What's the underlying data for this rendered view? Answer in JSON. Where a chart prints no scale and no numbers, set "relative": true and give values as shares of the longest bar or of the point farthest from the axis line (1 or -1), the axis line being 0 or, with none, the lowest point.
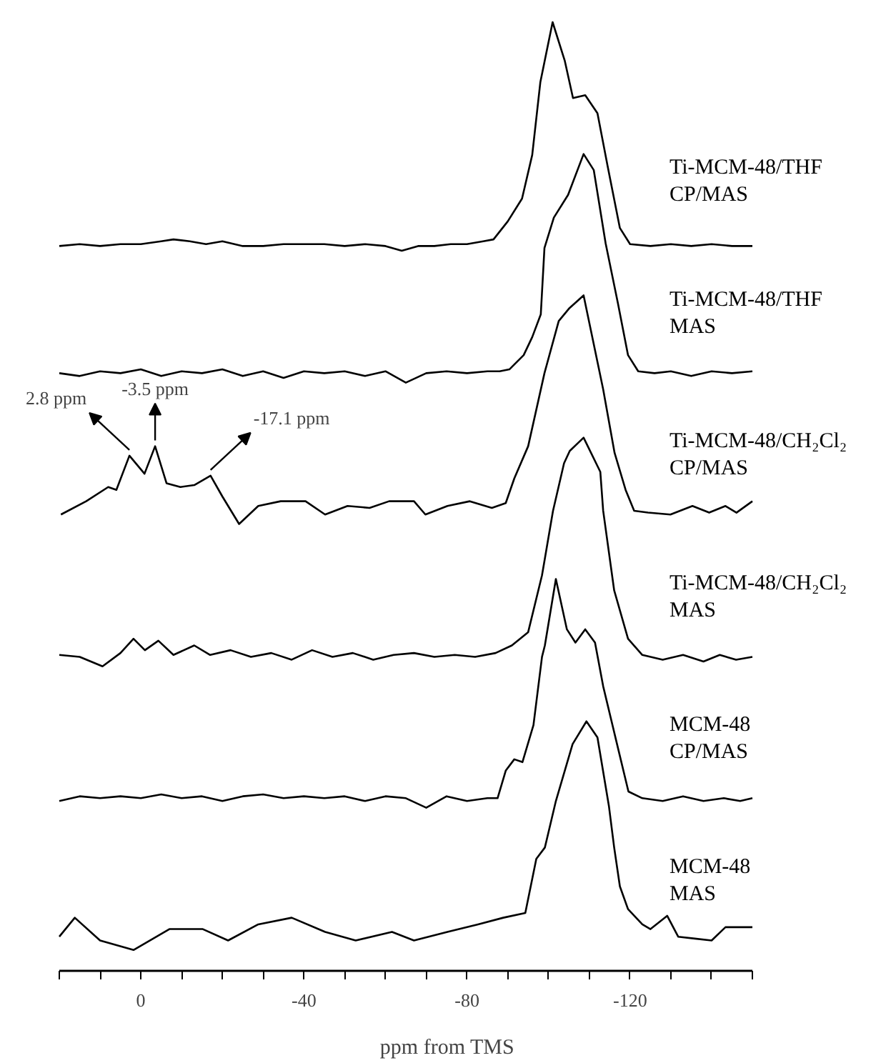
{
  "chart_data": {
    "type": "line",
    "relative": true,
    "xlabel": "ppm from TMS",
    "xlim": [
      20,
      -150
    ],
    "tick_labels": "x",
    "xticks": [
      {
        "value": 20,
        "label": null
      },
      {
        "value": 10,
        "label": null
      },
      0,
      {
        "value": -10,
        "label": null
      },
      {
        "value": -20,
        "label": null
      },
      {
        "value": -30,
        "label": null
      },
      -40,
      {
        "value": -50,
        "label": null
      },
      {
        "value": -60,
        "label": null
      },
      {
        "value": -70,
        "label": null
      },
      -80,
      {
        "value": -90,
        "label": null
      },
      {
        "value": -100,
        "label": null
      },
      {
        "value": -110,
        "label": null
      },
      -120,
      {
        "value": -130,
        "label": null
      },
      {
        "value": -140,
        "label": null
      },
      {
        "value": -150,
        "label": null
      }
    ],
    "series": [
      {
        "name": "Ti-MCM-48/THF CP/MAS",
        "color": "#000000",
        "x": [
          20,
          15,
          10,
          5,
          0,
          -5,
          -8,
          -12,
          -16,
          -20,
          -25,
          -30,
          -35,
          -40,
          -45,
          -50,
          -55,
          -60,
          -64,
          -68,
          -72,
          -76,
          -80,
          -84,
          -86.5,
          -90,
          -93.5,
          -96,
          -98,
          -101,
          -104,
          -106,
          -109,
          -112,
          -114.5,
          -117.5,
          -120,
          -125,
          -130,
          -135,
          -140,
          -145,
          -150
        ],
        "values": [
          0.764,
          0.766,
          0.764,
          0.766,
          0.766,
          0.769,
          0.771,
          0.769,
          0.766,
          0.769,
          0.764,
          0.764,
          0.766,
          0.766,
          0.766,
          0.764,
          0.766,
          0.764,
          0.759,
          0.764,
          0.764,
          0.766,
          0.766,
          0.769,
          0.771,
          0.79,
          0.814,
          0.86,
          0.937,
          1.0,
          0.959,
          0.92,
          0.923,
          0.904,
          0.848,
          0.783,
          0.766,
          0.764,
          0.766,
          0.764,
          0.766,
          0.764,
          0.764
        ]
      },
      {
        "name": "Ti-MCM-48/THF MAS",
        "color": "#000000",
        "x": [
          20,
          15,
          10,
          5,
          0,
          -5,
          -10,
          -15,
          -20,
          -25,
          -30,
          -35,
          -40,
          -45,
          -50,
          -55,
          -60,
          -65,
          -70,
          -75,
          -80,
          -85,
          -88,
          -90.4,
          -93.9,
          -96,
          -98.1,
          -99,
          -101.3,
          -104.8,
          -108.6,
          -111.1,
          -114,
          -117,
          -119.5,
          -122,
          -126,
          -130,
          -135,
          -140,
          -145,
          -150
        ],
        "values": [
          0.63,
          0.627,
          0.632,
          0.63,
          0.634,
          0.627,
          0.632,
          0.63,
          0.634,
          0.627,
          0.632,
          0.625,
          0.632,
          0.63,
          0.632,
          0.627,
          0.632,
          0.62,
          0.63,
          0.632,
          0.63,
          0.632,
          0.632,
          0.634,
          0.649,
          0.668,
          0.692,
          0.762,
          0.794,
          0.818,
          0.861,
          0.844,
          0.767,
          0.704,
          0.649,
          0.632,
          0.63,
          0.632,
          0.627,
          0.632,
          0.63,
          0.632
        ]
      },
      {
        "name": "Ti-MCM-48/CH₂Cl₂ CP/MAS",
        "color": "#000000",
        "x": [
          19.6,
          13.4,
          8,
          6,
          2.8,
          -0.9,
          -3.5,
          -6.3,
          -9.7,
          -13.1,
          -17.1,
          -20,
          -24.1,
          -28.8,
          -34.3,
          -40.4,
          -45.2,
          -50.7,
          -56.1,
          -60.9,
          -67,
          -69.8,
          -75.2,
          -80.7,
          -86.1,
          -89.5,
          -91.6,
          -95,
          -99,
          -102.5,
          -105,
          -108.6,
          -113.4,
          -116.2,
          -118.9,
          -121,
          -124.4,
          -129.9,
          -135.3,
          -139.4,
          -143.4,
          -146.1,
          -150
        ],
        "values": [
          0.481,
          0.495,
          0.51,
          0.507,
          0.543,
          0.524,
          0.553,
          0.514,
          0.51,
          0.512,
          0.522,
          0.5,
          0.471,
          0.49,
          0.495,
          0.495,
          0.481,
          0.49,
          0.488,
          0.495,
          0.495,
          0.481,
          0.49,
          0.495,
          0.488,
          0.493,
          0.519,
          0.553,
          0.63,
          0.685,
          0.698,
          0.712,
          0.613,
          0.546,
          0.507,
          0.485,
          0.483,
          0.481,
          0.49,
          0.483,
          0.49,
          0.483,
          0.495
        ]
      },
      {
        "name": "Ti-MCM-48/CH₂Cl₂ MAS",
        "color": "#000000",
        "x": [
          20,
          15,
          9.4,
          5,
          1.8,
          -1,
          -4.3,
          -8,
          -13.1,
          -17,
          -22,
          -27,
          -32,
          -37,
          -42,
          -47,
          -52,
          -57,
          -62,
          -67,
          -72,
          -77,
          -82,
          -87,
          -91,
          -95,
          -98.4,
          -101.1,
          -103.8,
          -105.2,
          -108.6,
          -112.7,
          -113.4,
          -116.1,
          -119.5,
          -123,
          -128,
          -133,
          -138,
          -142,
          -146,
          -150
        ],
        "values": [
          0.333,
          0.331,
          0.321,
          0.335,
          0.35,
          0.338,
          0.348,
          0.333,
          0.343,
          0.333,
          0.338,
          0.331,
          0.335,
          0.328,
          0.338,
          0.331,
          0.335,
          0.328,
          0.333,
          0.335,
          0.331,
          0.333,
          0.331,
          0.335,
          0.343,
          0.357,
          0.417,
          0.485,
          0.535,
          0.548,
          0.562,
          0.526,
          0.485,
          0.401,
          0.35,
          0.333,
          0.328,
          0.333,
          0.326,
          0.333,
          0.328,
          0.331
        ]
      },
      {
        "name": "MCM-48 CP/MAS",
        "color": "#000000",
        "x": [
          20,
          15,
          10,
          5,
          0,
          -5,
          -10,
          -15,
          -20,
          -25,
          -30,
          -35,
          -40,
          -45,
          -50,
          -55,
          -60,
          -65,
          -70,
          -75,
          -80,
          -85,
          -87.5,
          -89.5,
          -91.6,
          -93.6,
          -96.3,
          -98.4,
          -99.1,
          -101.8,
          -104.5,
          -106.6,
          -109,
          -111.4,
          -113.4,
          -116.8,
          -119.6,
          -123,
          -128,
          -133,
          -138,
          -143,
          -147,
          -150
        ],
        "values": [
          0.179,
          0.184,
          0.182,
          0.184,
          0.182,
          0.186,
          0.182,
          0.184,
          0.179,
          0.184,
          0.186,
          0.182,
          0.184,
          0.182,
          0.184,
          0.179,
          0.184,
          0.182,
          0.172,
          0.184,
          0.179,
          0.182,
          0.182,
          0.211,
          0.223,
          0.22,
          0.259,
          0.331,
          0.343,
          0.413,
          0.36,
          0.346,
          0.36,
          0.346,
          0.3,
          0.239,
          0.189,
          0.182,
          0.179,
          0.184,
          0.179,
          0.182,
          0.179,
          0.182
        ]
      },
      {
        "name": "MCM-48 MAS",
        "color": "#000000",
        "x": [
          20,
          16.2,
          10,
          1.8,
          -7,
          -15.2,
          -21.4,
          -28.8,
          -37,
          -45.2,
          -52.7,
          -61.6,
          -67,
          -75.2,
          -82.7,
          -88.9,
          -94.3,
          -97,
          -99.1,
          -101.8,
          -105.9,
          -109.3,
          -112,
          -114.8,
          -116.1,
          -117.5,
          -119.5,
          -123,
          -125,
          -129.1,
          -131.8,
          -135.9,
          -140,
          -143.4,
          -150
        ],
        "values": [
          0.036,
          0.056,
          0.032,
          0.022,
          0.044,
          0.044,
          0.032,
          0.049,
          0.056,
          0.041,
          0.032,
          0.041,
          0.032,
          0.041,
          0.049,
          0.056,
          0.061,
          0.118,
          0.13,
          0.179,
          0.239,
          0.263,
          0.246,
          0.174,
          0.13,
          0.089,
          0.065,
          0.049,
          0.044,
          0.058,
          0.036,
          0.034,
          0.032,
          0.046,
          0.046
        ]
      }
    ],
    "annotations": [
      {
        "text": "2.8 ppm",
        "x": 2.8,
        "y": 0.543
      },
      {
        "text": "-3.5 ppm",
        "x": -3.5,
        "y": 0.553
      },
      {
        "text": "-17.1 ppm",
        "x": -17.1,
        "y": 0.522
      }
    ]
  }
}
